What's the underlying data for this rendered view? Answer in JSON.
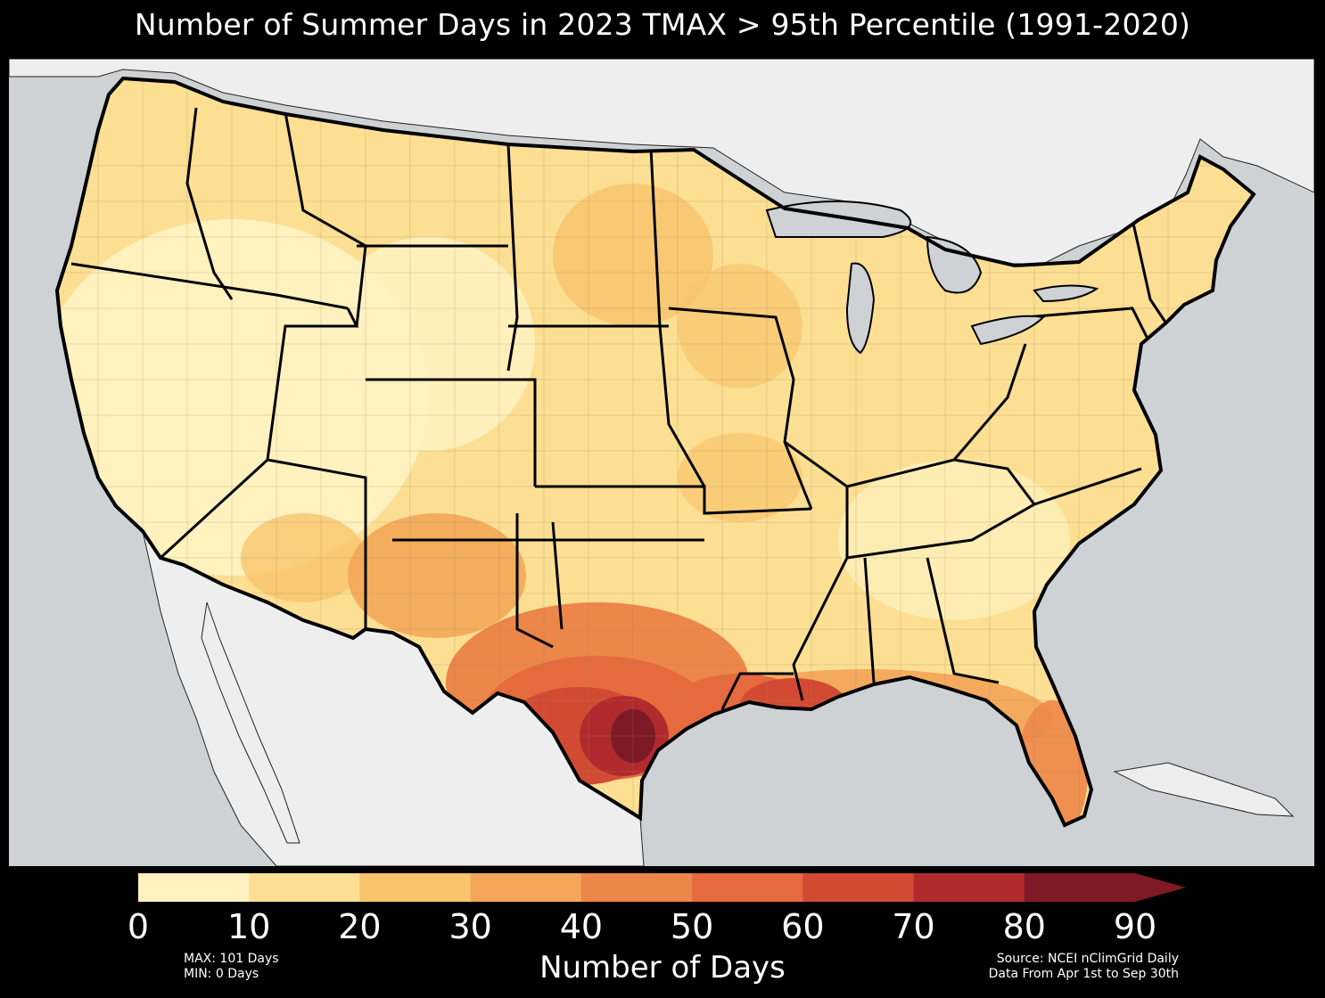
{
  "title": "Number of Summer Days in 2023 TMAX > 95th Percentile (1991-2020)",
  "colorbar": {
    "label": "Number of Days",
    "ticks": [
      "0",
      "10",
      "20",
      "30",
      "40",
      "50",
      "60",
      "70",
      "80",
      "90"
    ],
    "bins": [
      {
        "range": [
          0,
          10
        ],
        "color": "#fff2c0"
      },
      {
        "range": [
          10,
          20
        ],
        "color": "#fcdf93"
      },
      {
        "range": [
          20,
          30
        ],
        "color": "#f8c46c"
      },
      {
        "range": [
          30,
          40
        ],
        "color": "#f3a658"
      },
      {
        "range": [
          40,
          50
        ],
        "color": "#ed8649"
      },
      {
        "range": [
          50,
          60
        ],
        "color": "#e56a3e"
      },
      {
        "range": [
          60,
          70
        ],
        "color": "#d34a33"
      },
      {
        "range": [
          70,
          80
        ],
        "color": "#b12a2e"
      },
      {
        "range": [
          80,
          90
        ],
        "color": "#7e1a25"
      }
    ],
    "extend": "max",
    "extend_color": "#7e1a25"
  },
  "stats": {
    "max": "MAX: 101 Days",
    "min": "MIN: 0 Days"
  },
  "source": {
    "line1": "Source: NCEI nClimGrid Daily",
    "line2": "Data From Apr 1st to Sep 30th"
  },
  "colors": {
    "background": "#000000",
    "ocean": "#cfd2d5",
    "land_outside": "#eeeeee",
    "land_conus": "#fbe7a6",
    "state_border": "#000000"
  }
}
